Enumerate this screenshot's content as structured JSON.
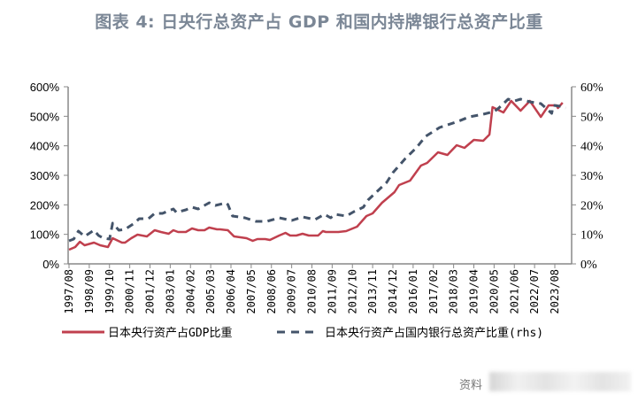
{
  "chart_data": {
    "type": "line",
    "title": "图表 4:  日央行总资产占 GDP 和国内持牌银行总资产比重",
    "x_tick_labels": [
      "1997/08",
      "1998/09",
      "1999/10",
      "2000/11",
      "2001/12",
      "2003/01",
      "2004/02",
      "2005/03",
      "2006/04",
      "2007/05",
      "2008/06",
      "2009/07",
      "2010/08",
      "2011/09",
      "2012/10",
      "2013/11",
      "2014/12",
      "2016/01",
      "2017/02",
      "2018/03",
      "2019/04",
      "2020/05",
      "2021/06",
      "2022/07",
      "2023/08"
    ],
    "y_left": {
      "range": [
        0,
        600
      ],
      "ticks": [
        "0%",
        "100%",
        "200%",
        "300%",
        "400%",
        "500%",
        "600%"
      ]
    },
    "y_right": {
      "range": [
        0,
        60
      ],
      "ticks": [
        "0%",
        "10%",
        "20%",
        "30%",
        "40%",
        "50%",
        "60%"
      ]
    },
    "grid": false,
    "legend_position": "bottom",
    "series": [
      {
        "name": "日本央行资产占GDP比重",
        "axis": "left",
        "color": "#c0404e",
        "style": "solid",
        "points": [
          [
            "1997/08",
            48
          ],
          [
            "1997/12",
            57
          ],
          [
            "1998/03",
            75
          ],
          [
            "1998/06",
            63
          ],
          [
            "1998/12",
            72
          ],
          [
            "1999/04",
            63
          ],
          [
            "1999/09",
            57
          ],
          [
            "1999/12",
            87
          ],
          [
            "2000/06",
            72
          ],
          [
            "2000/08",
            72
          ],
          [
            "2000/12",
            87
          ],
          [
            "2001/04",
            99
          ],
          [
            "2001/10",
            93
          ],
          [
            "2002/03",
            114
          ],
          [
            "2002/07",
            108
          ],
          [
            "2002/12",
            102
          ],
          [
            "2003/03",
            114
          ],
          [
            "2003/06",
            108
          ],
          [
            "2003/11",
            108
          ],
          [
            "2004/03",
            120
          ],
          [
            "2004/07",
            114
          ],
          [
            "2004/11",
            114
          ],
          [
            "2005/02",
            123
          ],
          [
            "2005/07",
            117
          ],
          [
            "2005/09",
            117
          ],
          [
            "2006/02",
            114
          ],
          [
            "2006/06",
            93
          ],
          [
            "2006/10",
            90
          ],
          [
            "2007/02",
            87
          ],
          [
            "2007/06",
            78
          ],
          [
            "2007/09",
            84
          ],
          [
            "2008/02",
            84
          ],
          [
            "2008/05",
            81
          ],
          [
            "2008/11",
            96
          ],
          [
            "2009/03",
            105
          ],
          [
            "2009/06",
            96
          ],
          [
            "2009/10",
            96
          ],
          [
            "2010/02",
            102
          ],
          [
            "2010/06",
            96
          ],
          [
            "2010/12",
            96
          ],
          [
            "2011/03",
            111
          ],
          [
            "2011/05",
            108
          ],
          [
            "2012/01",
            108
          ],
          [
            "2012/06",
            111
          ],
          [
            "2013/01",
            126
          ],
          [
            "2013/07",
            162
          ],
          [
            "2013/11",
            171
          ],
          [
            "2014/05",
            207
          ],
          [
            "2015/01",
            243
          ],
          [
            "2015/04",
            267
          ],
          [
            "2015/11",
            282
          ],
          [
            "2016/06",
            333
          ],
          [
            "2016/10",
            342
          ],
          [
            "2017/05",
            378
          ],
          [
            "2017/11",
            369
          ],
          [
            "2018/05",
            402
          ],
          [
            "2018/10",
            393
          ],
          [
            "2019/04",
            420
          ],
          [
            "2019/10",
            417
          ],
          [
            "2020/02",
            438
          ],
          [
            "2020/04",
            531
          ],
          [
            "2020/11",
            513
          ],
          [
            "2021/04",
            552
          ],
          [
            "2021/10",
            519
          ],
          [
            "2022/04",
            552
          ],
          [
            "2022/11",
            498
          ],
          [
            "2023/04",
            537
          ],
          [
            "2023/09",
            537
          ],
          [
            "2023/10",
            528
          ],
          [
            "2024/01",
            546
          ]
        ]
      },
      {
        "name": "日本央行资产占国内银行总资产比重(rhs)",
        "axis": "right",
        "color": "#44546a",
        "style": "dashed",
        "points": [
          [
            "1997/08",
            7.8
          ],
          [
            "1997/11",
            8.4
          ],
          [
            "1998/02",
            11.1
          ],
          [
            "1998/06",
            9.3
          ],
          [
            "1998/12",
            11.4
          ],
          [
            "1999/03",
            9.6
          ],
          [
            "1999/06",
            8.7
          ],
          [
            "1999/10",
            8.4
          ],
          [
            "1999/12",
            13.8
          ],
          [
            "2000/04",
            11.4
          ],
          [
            "2000/08",
            11.7
          ],
          [
            "2001/02",
            13.8
          ],
          [
            "2001/05",
            15.3
          ],
          [
            "2001/11",
            15.3
          ],
          [
            "2002/03",
            17.1
          ],
          [
            "2002/08",
            17.1
          ],
          [
            "2003/03",
            18.6
          ],
          [
            "2003/05",
            17.4
          ],
          [
            "2003/11",
            18.3
          ],
          [
            "2004/03",
            19.2
          ],
          [
            "2004/07",
            18.6
          ],
          [
            "2005/02",
            20.7
          ],
          [
            "2005/06",
            19.8
          ],
          [
            "2006/01",
            20.7
          ],
          [
            "2006/02",
            20.1
          ],
          [
            "2006/05",
            16.2
          ],
          [
            "2007/01",
            15.6
          ],
          [
            "2007/08",
            14.4
          ],
          [
            "2008/03",
            14.4
          ],
          [
            "2008/11",
            15.6
          ],
          [
            "2009/07",
            14.7
          ],
          [
            "2010/02",
            15.9
          ],
          [
            "2010/10",
            15.0
          ],
          [
            "2011/04",
            16.8
          ],
          [
            "2011/08",
            15.6
          ],
          [
            "2011/11",
            16.8
          ],
          [
            "2012/06",
            16.2
          ],
          [
            "2012/11",
            17.7
          ],
          [
            "2013/05",
            19.2
          ],
          [
            "2013/08",
            21.6
          ],
          [
            "2014/02",
            24.6
          ],
          [
            "2014/08",
            27.6
          ],
          [
            "2014/12",
            30.9
          ],
          [
            "2015/08",
            35.7
          ],
          [
            "2016/03",
            39.3
          ],
          [
            "2016/09",
            43.2
          ],
          [
            "2017/06",
            46.2
          ],
          [
            "2018/06",
            48.3
          ],
          [
            "2019/01",
            49.8
          ],
          [
            "2019/10",
            50.7
          ],
          [
            "2020/05",
            51.6
          ],
          [
            "2020/08",
            52.8
          ],
          [
            "2021/02",
            55.8
          ],
          [
            "2021/06",
            55.2
          ],
          [
            "2021/10",
            55.8
          ],
          [
            "2022/04",
            54.9
          ],
          [
            "2022/11",
            54.3
          ],
          [
            "2023/06",
            51.0
          ],
          [
            "2023/07",
            53.7
          ],
          [
            "2023/12",
            53.4
          ],
          [
            "2024/03",
            52.8
          ]
        ]
      }
    ]
  },
  "source_label": "资料"
}
